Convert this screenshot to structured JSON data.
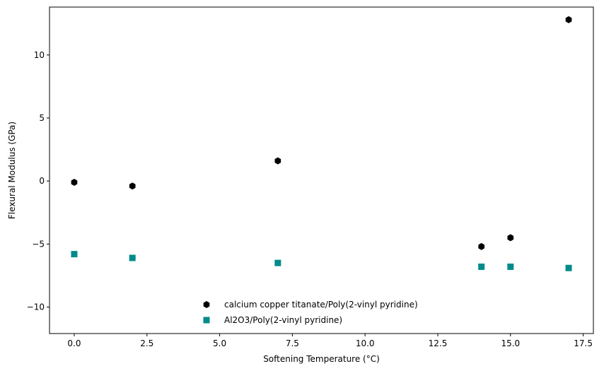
{
  "chart_data": {
    "type": "scatter",
    "title": "",
    "xlabel": "Softening Temperature (°C)",
    "ylabel": "Flexural Modulus (GPa)",
    "xlim": [
      -0.85,
      17.85
    ],
    "ylim": [
      -12.1,
      13.8
    ],
    "xticks": [
      0.0,
      2.5,
      5.0,
      7.5,
      10.0,
      12.5,
      15.0,
      17.5
    ],
    "xtick_labels": [
      "0.0",
      "2.5",
      "5.0",
      "7.5",
      "10.0",
      "12.5",
      "15.0",
      "17.5"
    ],
    "yticks": [
      -10,
      -5,
      0,
      5,
      10
    ],
    "ytick_labels": [
      "−10",
      "−5",
      "0",
      "5",
      "10"
    ],
    "grid": false,
    "legend_position": "bottom-center",
    "series": [
      {
        "name": "calcium copper titanate/Poly(2-vinyl pyridine)",
        "marker": "hexagon",
        "color": "#000000",
        "x": [
          0,
          2,
          7,
          14,
          15,
          17
        ],
        "y": [
          -0.1,
          -0.4,
          1.6,
          -5.2,
          -4.5,
          12.8
        ]
      },
      {
        "name": "Al2O3/Poly(2-vinyl pyridine)",
        "marker": "square",
        "color": "#008b8b",
        "x": [
          0,
          2,
          7,
          14,
          15,
          17
        ],
        "y": [
          -5.8,
          -6.1,
          -6.5,
          -6.8,
          -6.8,
          -6.9
        ]
      }
    ]
  }
}
